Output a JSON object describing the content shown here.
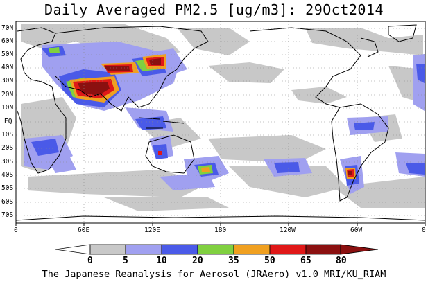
{
  "title": "Daily Averaged PM2.5 [ug/m3]: 29Oct2014",
  "footer": "The Japanese Reanalysis for Aerosol (JRAero) v1.0 MRI/KU_RIAM",
  "lat_labels": [
    "70N",
    "60N",
    "50N",
    "40N",
    "30N",
    "20N",
    "10N",
    "EQ",
    "10S",
    "20S",
    "30S",
    "40S",
    "50S",
    "60S",
    "70S"
  ],
  "lon_labels": [
    "0",
    "60E",
    "120E",
    "180",
    "120W",
    "60W",
    "0"
  ],
  "colorbar": {
    "levels": [
      "0",
      "5",
      "10",
      "20",
      "35",
      "50",
      "65",
      "80"
    ],
    "colors": [
      "#ffffff",
      "#c8c8c8",
      "#a0a0f0",
      "#4a5ae8",
      "#80d040",
      "#f0a020",
      "#e01818",
      "#8b1010"
    ]
  }
}
